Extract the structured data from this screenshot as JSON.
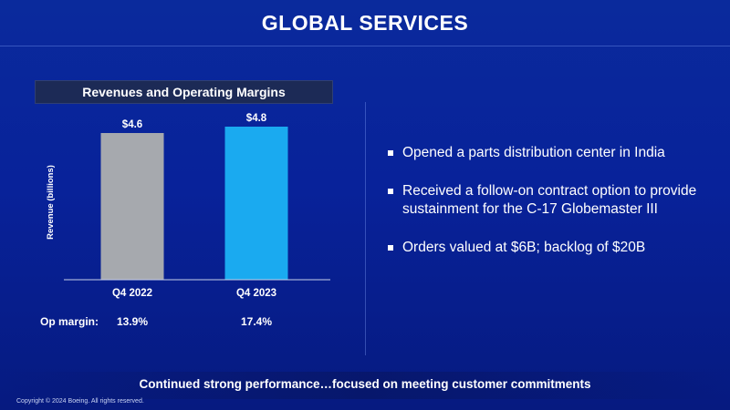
{
  "slide": {
    "title": "GLOBAL SERVICES",
    "footer": "Continued strong performance…focused on meeting customer commitments",
    "copyright": "Copyright © 2024 Boeing. All rights reserved."
  },
  "chart_data": {
    "type": "bar",
    "title": "Revenues and Operating Margins",
    "ylabel": "Revenue (billions)",
    "xlabel": "",
    "categories": [
      "Q4 2022",
      "Q4 2023"
    ],
    "values": [
      4.6,
      4.8
    ],
    "value_labels": [
      "$4.6",
      "$4.8"
    ],
    "colors": [
      "#a6a9ae",
      "#1aaaf0"
    ],
    "ylim": [
      0,
      5.2
    ],
    "grid": false,
    "op_margin": {
      "label": "Op margin:",
      "values": [
        "13.9%",
        "17.4%"
      ]
    }
  },
  "bullets": [
    "Opened a parts distribution center in India",
    "Received a follow-on contract option to provide sustainment for the C-17 Globemaster III",
    "Orders valued at $6B; backlog of $20B"
  ]
}
